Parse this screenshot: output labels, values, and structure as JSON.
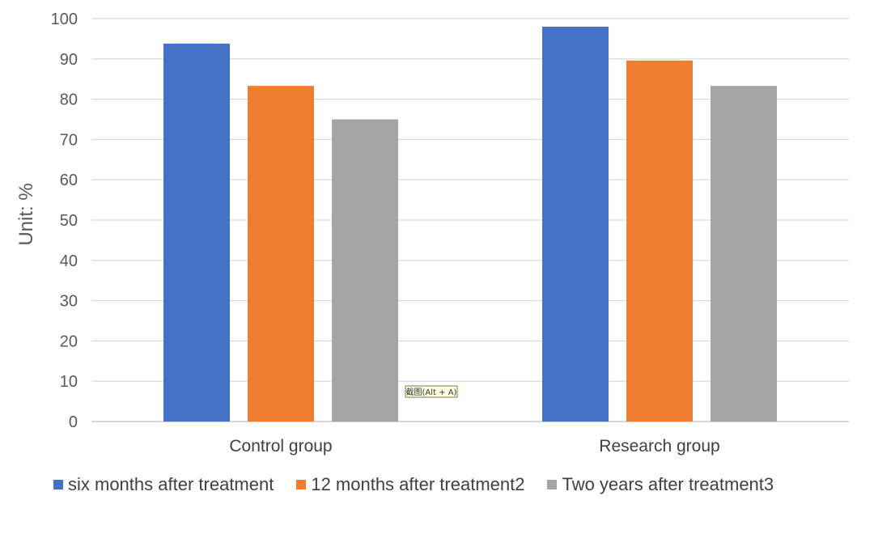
{
  "chart_data": {
    "type": "bar",
    "categories": [
      "Control group",
      "Research group"
    ],
    "series": [
      {
        "name": "six months after treatment",
        "values": [
          93.8,
          98.0
        ],
        "color": "#4472C4"
      },
      {
        "name": "12 months after treatment2",
        "values": [
          83.3,
          89.6
        ],
        "color": "#ED7D31"
      },
      {
        "name": "Two years after treatment3",
        "values": [
          75.0,
          83.3
        ],
        "color": "#A5A5A5"
      }
    ],
    "title": "",
    "xlabel": "",
    "ylabel": "Unit: %",
    "ylim": [
      0,
      100
    ],
    "yticks": [
      0,
      10,
      20,
      30,
      40,
      50,
      60,
      70,
      80,
      90,
      100
    ],
    "grid": true,
    "legend_position": "bottom-left"
  },
  "overlay": {
    "tooltip_text": "截图(Alt + A)"
  }
}
